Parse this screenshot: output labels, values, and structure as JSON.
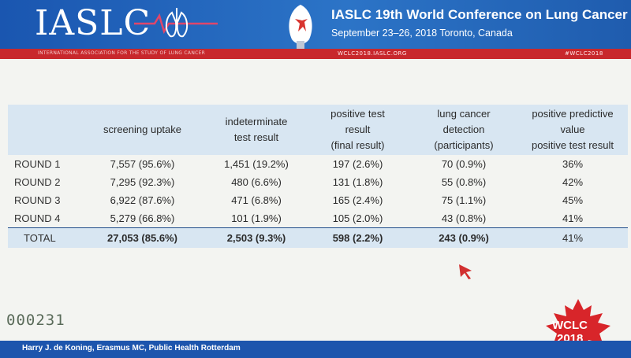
{
  "header": {
    "logo_text": "IASLC",
    "conference_title": "IASLC 19th World Conference on Lung Cancer",
    "conference_dates": "September 23–26, 2018   Toronto, Canada",
    "org_name": "INTERNATIONAL ASSOCIATION FOR THE STUDY OF LUNG CANCER",
    "website": "WCLC2018.IASLC.ORG",
    "hashtag": "#WCLC2018",
    "icons": [
      "lungs-heartbeat-icon",
      "torch-lungs-icon"
    ],
    "colors": {
      "header_blue": "#1a56b0",
      "accent_red": "#c8282c"
    }
  },
  "table": {
    "headers": [
      {
        "lines": [
          ""
        ]
      },
      {
        "lines": [
          "screening uptake"
        ]
      },
      {
        "lines": [
          "indeterminate",
          "test result"
        ]
      },
      {
        "lines": [
          "positive test",
          "result",
          "(final result)"
        ]
      },
      {
        "lines": [
          "lung cancer",
          "detection",
          "(participants)"
        ]
      },
      {
        "lines": [
          "positive predictive",
          "value",
          "positive test result"
        ]
      }
    ],
    "rows": [
      [
        "ROUND 1",
        "7,557 (95.6%)",
        "1,451 (19.2%)",
        "197 (2.6%)",
        "70 (0.9%)",
        "36%"
      ],
      [
        "ROUND 2",
        "7,295 (92.3%)",
        "480 (6.6%)",
        "131 (1.8%)",
        "55 (0.8%)",
        "42%"
      ],
      [
        "ROUND 3",
        "6,922 (87.6%)",
        "471 (6.8%)",
        "165 (2.4%)",
        "75 (1.1%)",
        "45%"
      ],
      [
        "ROUND 4",
        "5,279 (66.8%)",
        "101 (1.9%)",
        "105 (2.0%)",
        "43 (0.8%)",
        "41%"
      ]
    ],
    "total": [
      "TOTAL",
      "27,053 (85.6%)",
      "2,503 (9.3%)",
      "598 (2.2%)",
      "243 (0.9%)",
      "41%"
    ],
    "colors": {
      "header_bg": "#d8e6f2",
      "total_line": "#1f4d8a"
    }
  },
  "counter": "000231",
  "wclc_logo": {
    "line1": "WCLC",
    "line2": "2018",
    "icon": "maple-leaf-icon"
  },
  "footer": {
    "credit": "Harry J. de Koning, Erasmus MC, Public Health Rotterdam"
  },
  "cursor": {
    "icon": "mouse-pointer-icon",
    "color": "#d23030"
  }
}
